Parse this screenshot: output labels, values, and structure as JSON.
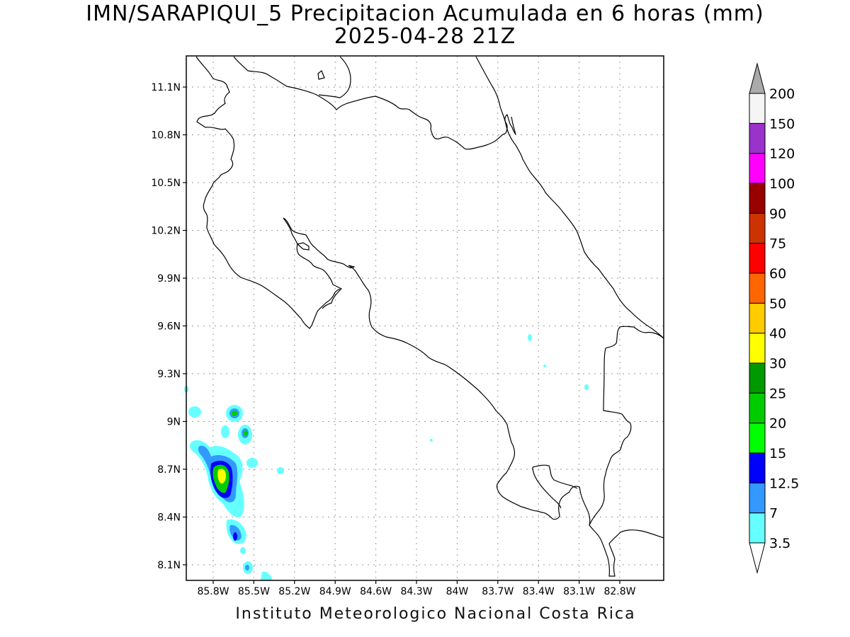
{
  "title": {
    "line1": "IMN/SARAPIQUI_5 Precipitacion Acumulada en 6 horas (mm)",
    "line2": "2025-04-28 21Z"
  },
  "footer": "Instituto Meteorologico Nacional Costa Rica",
  "axes": {
    "lat_labels": [
      "11.1N",
      "10.8N",
      "10.5N",
      "10.2N",
      "9.9N",
      "9.6N",
      "9.3N",
      "9N",
      "8.7N",
      "8.4N",
      "8.1N"
    ],
    "lon_labels": [
      "85.8W",
      "85.5W",
      "85.2W",
      "84.9W",
      "84.6W",
      "84.3W",
      "84W",
      "83.7W",
      "83.4W",
      "83.1W",
      "82.8W"
    ]
  },
  "colorbar": {
    "levels": [
      "3.5",
      "7",
      "12.5",
      "15",
      "20",
      "25",
      "30",
      "40",
      "50",
      "60",
      "75",
      "90",
      "100",
      "120",
      "150",
      "200"
    ],
    "colors": [
      "#66ffff",
      "#3399ff",
      "#0000ff",
      "#00ff00",
      "#00cc00",
      "#009900",
      "#ffff00",
      "#ffcc00",
      "#ff6600",
      "#ff0000",
      "#cc3300",
      "#990000",
      "#ff00ff",
      "#9933cc",
      "#f5f5f5"
    ],
    "over_color": "#aaaaaa",
    "under_color": "#ffffff"
  }
}
